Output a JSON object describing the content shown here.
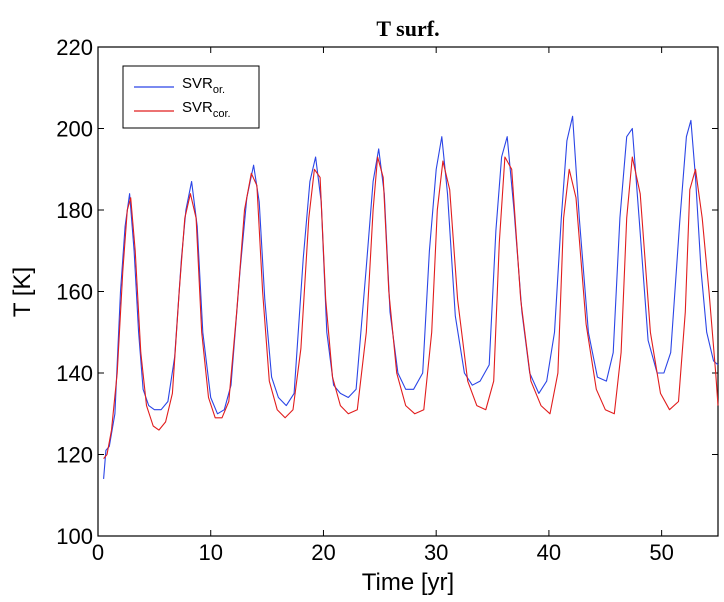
{
  "chart_data": {
    "type": "line",
    "title": "T surf.",
    "xlabel": "Time [yr]",
    "ylabel": "T [K]",
    "xlim": [
      0,
      55
    ],
    "ylim": [
      100,
      220
    ],
    "xticks": [
      0,
      10,
      20,
      30,
      40,
      50
    ],
    "yticks": [
      100,
      120,
      140,
      160,
      180,
      200,
      220
    ],
    "legend_position": "top-left",
    "series": [
      {
        "name": "SVR_or.",
        "label_main": "SVR",
        "label_sub": "or.",
        "color": "#2b45e6",
        "x": [
          0.5,
          0.7,
          1.0,
          1.5,
          2.0,
          2.4,
          2.8,
          3.2,
          3.6,
          4.0,
          4.5,
          5.0,
          5.6,
          6.2,
          6.8,
          7.4,
          7.8,
          8.3,
          8.8,
          9.3,
          10.0,
          10.6,
          11.2,
          11.8,
          12.6,
          13.2,
          13.8,
          14.3,
          14.8,
          15.4,
          16.0,
          16.7,
          17.4,
          18.2,
          18.8,
          19.3,
          19.8,
          20.3,
          20.9,
          21.5,
          22.2,
          22.9,
          23.8,
          24.4,
          24.9,
          25.4,
          25.9,
          26.6,
          27.3,
          28.0,
          28.8,
          29.4,
          30.0,
          30.5,
          31.0,
          31.7,
          32.5,
          33.2,
          33.9,
          34.7,
          35.3,
          35.8,
          36.3,
          36.9,
          37.6,
          38.3,
          39.1,
          39.8,
          40.5,
          41.1,
          41.6,
          42.1,
          42.7,
          43.5,
          44.3,
          45.1,
          45.7,
          46.3,
          46.9,
          47.4,
          48.0,
          48.8,
          49.6,
          50.2,
          50.8,
          51.6,
          52.2,
          52.6,
          53.0,
          53.5,
          54.0,
          54.6,
          55.0
        ],
        "y": [
          114,
          121,
          122,
          130,
          160,
          176,
          184,
          170,
          150,
          136,
          132,
          131,
          131,
          133,
          144,
          168,
          180,
          187,
          176,
          150,
          134,
          130,
          131,
          137,
          165,
          183,
          191,
          182,
          158,
          139,
          134,
          132,
          135,
          168,
          187,
          193,
          182,
          150,
          137,
          135,
          134,
          136,
          166,
          187,
          195,
          184,
          155,
          140,
          136,
          136,
          140,
          170,
          190,
          198,
          184,
          154,
          140,
          137,
          138,
          142,
          175,
          193,
          198,
          180,
          155,
          140,
          135,
          138,
          150,
          178,
          197,
          203,
          178,
          150,
          139,
          138,
          145,
          178,
          198,
          200,
          178,
          148,
          140,
          140,
          145,
          177,
          198,
          202,
          188,
          165,
          150,
          143,
          142
        ]
      },
      {
        "name": "SVR_cor.",
        "label_main": "SVR",
        "label_sub": "cor.",
        "color": "#e11d1d",
        "x": [
          0.5,
          0.8,
          1.2,
          1.7,
          2.2,
          2.6,
          2.9,
          3.3,
          3.8,
          4.3,
          4.9,
          5.4,
          6.0,
          6.6,
          7.2,
          7.7,
          8.2,
          8.7,
          9.2,
          9.8,
          10.4,
          11.0,
          11.6,
          12.3,
          13.0,
          13.6,
          14.1,
          14.6,
          15.2,
          15.9,
          16.6,
          17.3,
          18.0,
          18.7,
          19.2,
          19.7,
          20.2,
          20.8,
          21.5,
          22.2,
          23.0,
          23.8,
          24.4,
          24.8,
          25.3,
          25.8,
          26.5,
          27.3,
          28.1,
          28.9,
          29.6,
          30.1,
          30.6,
          31.2,
          31.9,
          32.8,
          33.6,
          34.4,
          35.1,
          35.6,
          36.1,
          36.7,
          37.5,
          38.4,
          39.3,
          40.1,
          40.8,
          41.3,
          41.8,
          42.4,
          43.3,
          44.2,
          45.0,
          45.8,
          46.4,
          46.9,
          47.4,
          48.1,
          49.0,
          49.9,
          50.7,
          51.5,
          52.1,
          52.5,
          53.0,
          53.6,
          54.2,
          54.8,
          55.0
        ],
        "y": [
          119,
          120,
          126,
          140,
          165,
          180,
          183,
          170,
          145,
          132,
          127,
          126,
          128,
          135,
          160,
          178,
          184,
          178,
          150,
          134,
          129,
          129,
          133,
          155,
          180,
          189,
          186,
          160,
          138,
          131,
          129,
          131,
          146,
          178,
          190,
          188,
          158,
          139,
          132,
          130,
          131,
          150,
          180,
          193,
          188,
          160,
          140,
          132,
          130,
          131,
          150,
          180,
          192,
          185,
          158,
          138,
          132,
          131,
          138,
          172,
          193,
          190,
          158,
          138,
          132,
          130,
          140,
          178,
          190,
          183,
          152,
          136,
          131,
          130,
          145,
          178,
          193,
          184,
          150,
          135,
          131,
          133,
          155,
          185,
          190,
          178,
          160,
          140,
          132
        ]
      }
    ]
  }
}
